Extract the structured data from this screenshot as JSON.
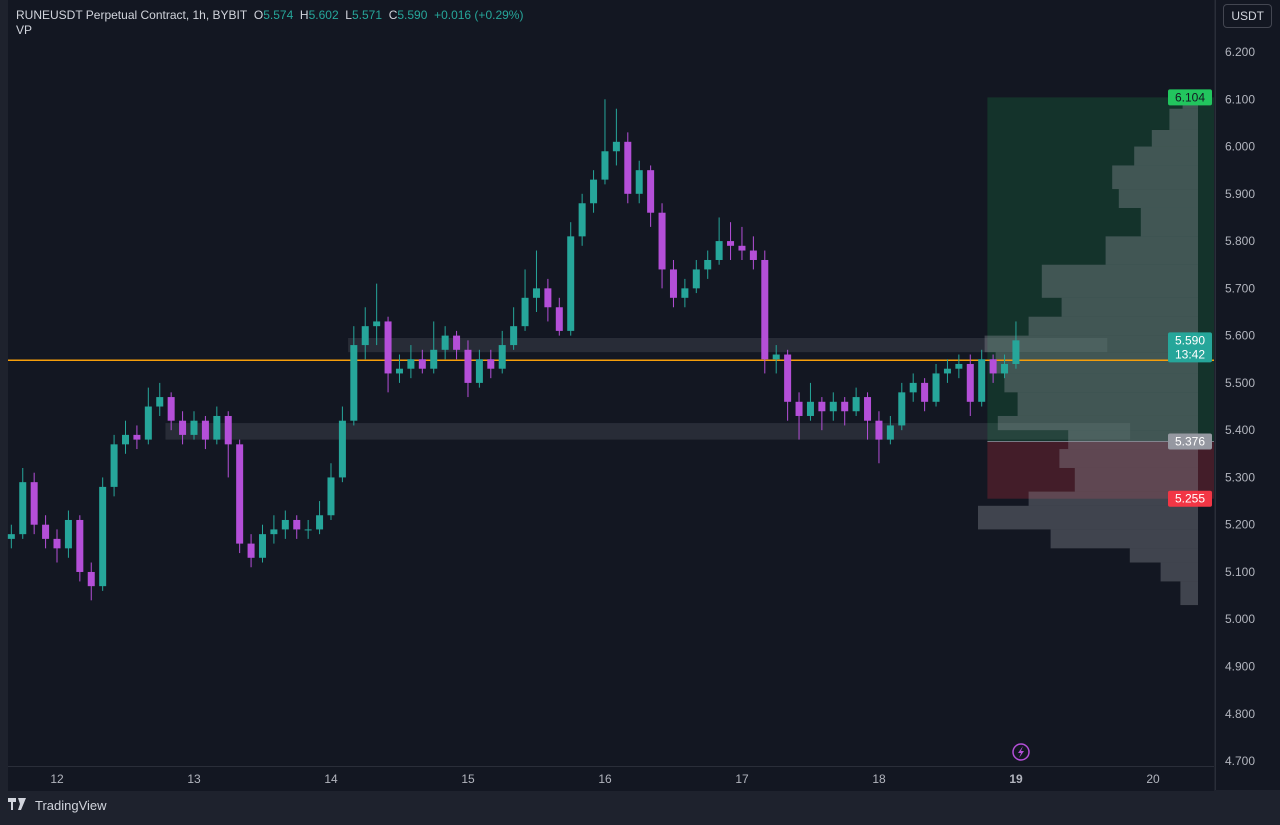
{
  "header": {
    "symbol": "RUNEUSDT Perpetual Contract, 1h, BYBIT",
    "o_label": "O",
    "o": "5.574",
    "h_label": "H",
    "h": "5.602",
    "l_label": "L",
    "l": "5.571",
    "c_label": "C",
    "c": "5.590",
    "change": "+0.016 (+0.29%)",
    "indicator": "VP"
  },
  "currency_button": "USDT",
  "footer": {
    "logo_mark": "TV",
    "brand": "TradingView"
  },
  "colors": {
    "up": "#26a69a",
    "down": "#b44fd8",
    "hline": "#f59e0b",
    "target": "#22c55e",
    "stop": "#f23645",
    "entry": "#9598a1",
    "background": "#131722"
  },
  "chart_data": {
    "type": "candlestick",
    "ylim": [
      4.7,
      6.2
    ],
    "y_ticks": [
      "6.200",
      "6.100",
      "6.000",
      "5.900",
      "5.800",
      "5.700",
      "5.600",
      "5.500",
      "5.400",
      "5.300",
      "5.200",
      "5.100",
      "5.000",
      "4.900",
      "4.800",
      "4.700"
    ],
    "x_ticks": [
      "12",
      "13",
      "14",
      "15",
      "16",
      "17",
      "18",
      "19",
      "20"
    ],
    "grid": false,
    "candles": [
      [
        "11 16:00",
        5.17,
        5.2,
        5.15,
        5.18
      ],
      [
        "11 18:00",
        5.18,
        5.32,
        5.17,
        5.29
      ],
      [
        "11 20:00",
        5.29,
        5.31,
        5.18,
        5.2
      ],
      [
        "11 22:00",
        5.2,
        5.22,
        5.15,
        5.17
      ],
      [
        "12 00:00",
        5.17,
        5.19,
        5.12,
        5.15
      ],
      [
        "12 02:00",
        5.15,
        5.23,
        5.13,
        5.21
      ],
      [
        "12 04:00",
        5.21,
        5.22,
        5.08,
        5.1
      ],
      [
        "12 06:00",
        5.1,
        5.12,
        5.04,
        5.07
      ],
      [
        "12 08:00",
        5.07,
        5.3,
        5.06,
        5.28
      ],
      [
        "12 10:00",
        5.28,
        5.39,
        5.26,
        5.37
      ],
      [
        "12 12:00",
        5.37,
        5.42,
        5.35,
        5.39
      ],
      [
        "12 14:00",
        5.39,
        5.41,
        5.36,
        5.38
      ],
      [
        "12 16:00",
        5.38,
        5.49,
        5.37,
        5.45
      ],
      [
        "12 18:00",
        5.45,
        5.5,
        5.43,
        5.47
      ],
      [
        "12 20:00",
        5.47,
        5.48,
        5.4,
        5.42
      ],
      [
        "12 22:00",
        5.42,
        5.44,
        5.37,
        5.39
      ],
      [
        "13 00:00",
        5.39,
        5.44,
        5.38,
        5.42
      ],
      [
        "13 02:00",
        5.42,
        5.43,
        5.36,
        5.38
      ],
      [
        "13 04:00",
        5.38,
        5.45,
        5.37,
        5.43
      ],
      [
        "13 06:00",
        5.43,
        5.44,
        5.3,
        5.37
      ],
      [
        "13 08:00",
        5.37,
        5.38,
        5.14,
        5.16
      ],
      [
        "13 10:00",
        5.16,
        5.18,
        5.11,
        5.13
      ],
      [
        "13 12:00",
        5.13,
        5.2,
        5.12,
        5.18
      ],
      [
        "13 14:00",
        5.18,
        5.22,
        5.16,
        5.19
      ],
      [
        "13 16:00",
        5.19,
        5.23,
        5.17,
        5.21
      ],
      [
        "13 18:00",
        5.21,
        5.22,
        5.17,
        5.19
      ],
      [
        "13 20:00",
        5.19,
        5.21,
        5.17,
        5.19
      ],
      [
        "13 22:00",
        5.19,
        5.25,
        5.18,
        5.22
      ],
      [
        "14 00:00",
        5.22,
        5.33,
        5.21,
        5.3
      ],
      [
        "14 02:00",
        5.3,
        5.45,
        5.29,
        5.42
      ],
      [
        "14 04:00",
        5.42,
        5.62,
        5.41,
        5.58
      ],
      [
        "14 06:00",
        5.58,
        5.66,
        5.55,
        5.62
      ],
      [
        "14 08:00",
        5.62,
        5.71,
        5.58,
        5.63
      ],
      [
        "14 10:00",
        5.63,
        5.64,
        5.48,
        5.52
      ],
      [
        "14 12:00",
        5.52,
        5.56,
        5.5,
        5.53
      ],
      [
        "14 14:00",
        5.53,
        5.58,
        5.51,
        5.55
      ],
      [
        "14 16:00",
        5.55,
        5.57,
        5.52,
        5.53
      ],
      [
        "14 18:00",
        5.53,
        5.63,
        5.52,
        5.57
      ],
      [
        "14 20:00",
        5.57,
        5.62,
        5.55,
        5.6
      ],
      [
        "14 22:00",
        5.6,
        5.61,
        5.55,
        5.57
      ],
      [
        "15 00:00",
        5.57,
        5.59,
        5.47,
        5.5
      ],
      [
        "15 02:00",
        5.5,
        5.57,
        5.49,
        5.55
      ],
      [
        "15 04:00",
        5.55,
        5.57,
        5.51,
        5.53
      ],
      [
        "15 06:00",
        5.53,
        5.61,
        5.52,
        5.58
      ],
      [
        "15 08:00",
        5.58,
        5.66,
        5.57,
        5.62
      ],
      [
        "15 10:00",
        5.62,
        5.74,
        5.61,
        5.68
      ],
      [
        "15 12:00",
        5.68,
        5.78,
        5.65,
        5.7
      ],
      [
        "15 14:00",
        5.7,
        5.72,
        5.63,
        5.66
      ],
      [
        "15 16:00",
        5.66,
        5.68,
        5.6,
        5.61
      ],
      [
        "15 18:00",
        5.61,
        5.84,
        5.6,
        5.81
      ],
      [
        "15 20:00",
        5.81,
        5.9,
        5.79,
        5.88
      ],
      [
        "15 22:00",
        5.88,
        5.95,
        5.86,
        5.93
      ],
      [
        "16 00:00",
        5.93,
        6.1,
        5.92,
        5.99
      ],
      [
        "16 02:00",
        5.99,
        6.08,
        5.96,
        6.01
      ],
      [
        "16 04:00",
        6.01,
        6.03,
        5.88,
        5.9
      ],
      [
        "16 06:00",
        5.9,
        5.97,
        5.88,
        5.95
      ],
      [
        "16 08:00",
        5.95,
        5.96,
        5.83,
        5.86
      ],
      [
        "16 10:00",
        5.86,
        5.88,
        5.7,
        5.74
      ],
      [
        "16 12:00",
        5.74,
        5.76,
        5.66,
        5.68
      ],
      [
        "16 14:00",
        5.68,
        5.72,
        5.66,
        5.7
      ],
      [
        "16 16:00",
        5.7,
        5.76,
        5.69,
        5.74
      ],
      [
        "16 18:00",
        5.74,
        5.78,
        5.72,
        5.76
      ],
      [
        "16 20:00",
        5.76,
        5.85,
        5.75,
        5.8
      ],
      [
        "16 22:00",
        5.8,
        5.84,
        5.76,
        5.79
      ],
      [
        "17 00:00",
        5.79,
        5.83,
        5.76,
        5.78
      ],
      [
        "17 02:00",
        5.78,
        5.81,
        5.74,
        5.76
      ],
      [
        "17 04:00",
        5.76,
        5.78,
        5.52,
        5.55
      ],
      [
        "17 06:00",
        5.55,
        5.58,
        5.52,
        5.56
      ],
      [
        "17 08:00",
        5.56,
        5.57,
        5.42,
        5.46
      ],
      [
        "17 10:00",
        5.46,
        5.48,
        5.38,
        5.43
      ],
      [
        "17 12:00",
        5.43,
        5.5,
        5.42,
        5.46
      ],
      [
        "17 14:00",
        5.46,
        5.47,
        5.4,
        5.44
      ],
      [
        "17 16:00",
        5.44,
        5.48,
        5.42,
        5.46
      ],
      [
        "17 18:00",
        5.46,
        5.47,
        5.41,
        5.44
      ],
      [
        "17 20:00",
        5.44,
        5.49,
        5.43,
        5.47
      ],
      [
        "17 22:00",
        5.47,
        5.48,
        5.38,
        5.42
      ],
      [
        "18 00:00",
        5.42,
        5.44,
        5.33,
        5.38
      ],
      [
        "18 02:00",
        5.38,
        5.43,
        5.37,
        5.41
      ],
      [
        "18 04:00",
        5.41,
        5.5,
        5.4,
        5.48
      ],
      [
        "18 06:00",
        5.48,
        5.52,
        5.46,
        5.5
      ],
      [
        "18 08:00",
        5.5,
        5.51,
        5.44,
        5.46
      ],
      [
        "18 10:00",
        5.46,
        5.54,
        5.45,
        5.52
      ],
      [
        "18 12:00",
        5.52,
        5.55,
        5.5,
        5.53
      ],
      [
        "18 14:00",
        5.53,
        5.56,
        5.51,
        5.54
      ],
      [
        "18 16:00",
        5.54,
        5.56,
        5.43,
        5.46
      ],
      [
        "18 18:00",
        5.46,
        5.57,
        5.45,
        5.55
      ],
      [
        "18 20:00",
        5.55,
        5.56,
        5.5,
        5.52
      ],
      [
        "18 22:00",
        5.52,
        5.56,
        5.51,
        5.54
      ],
      [
        "19 00:00",
        5.54,
        5.63,
        5.53,
        5.59
      ]
    ],
    "horizontal_line": 5.548,
    "zones": [
      {
        "from": "14 03:00",
        "to": "19 16:00",
        "low": 5.565,
        "high": 5.595
      },
      {
        "from": "12 19:00",
        "to": "19 20:00",
        "low": 5.38,
        "high": 5.415
      }
    ],
    "long_position": {
      "from": "18 19:00",
      "target": "6.104",
      "entry": "5.376",
      "stop": "5.255"
    },
    "last_price": {
      "value": "5.590",
      "countdown": "13:42"
    },
    "volume_profile": [
      [
        6.08,
        6.1,
        7
      ],
      [
        6.035,
        6.08,
        13
      ],
      [
        6.0,
        6.035,
        21
      ],
      [
        5.96,
        6.0,
        29
      ],
      [
        5.91,
        5.96,
        39
      ],
      [
        5.87,
        5.91,
        36
      ],
      [
        5.81,
        5.87,
        26
      ],
      [
        5.75,
        5.81,
        42
      ],
      [
        5.68,
        5.75,
        71
      ],
      [
        5.64,
        5.68,
        62
      ],
      [
        5.6,
        5.64,
        77
      ],
      [
        5.565,
        5.6,
        97
      ],
      [
        5.52,
        5.565,
        92
      ],
      [
        5.48,
        5.52,
        88
      ],
      [
        5.43,
        5.48,
        82
      ],
      [
        5.4,
        5.43,
        91
      ],
      [
        5.36,
        5.4,
        59
      ],
      [
        5.32,
        5.36,
        63
      ],
      [
        5.27,
        5.32,
        56
      ],
      [
        5.24,
        5.27,
        77
      ],
      [
        5.19,
        5.24,
        100
      ],
      [
        5.15,
        5.19,
        67
      ],
      [
        5.12,
        5.15,
        31
      ],
      [
        5.08,
        5.12,
        17
      ],
      [
        5.03,
        5.08,
        8
      ]
    ]
  }
}
